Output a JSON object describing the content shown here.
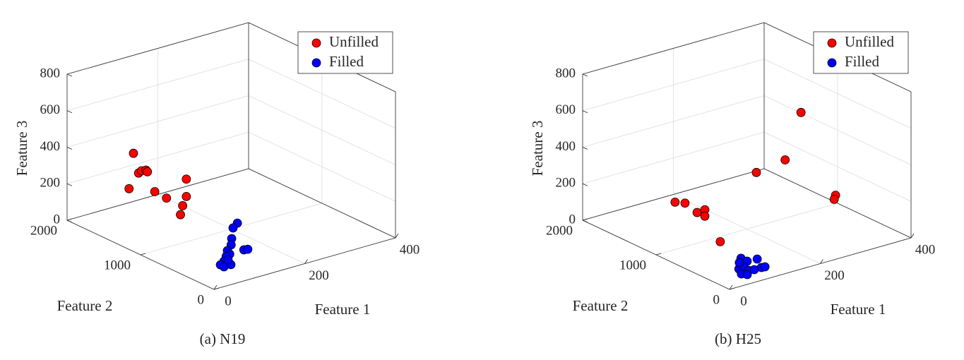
{
  "chart_data": [
    {
      "type": "scatter3d",
      "caption": "(a) N19",
      "xlabel": "Feature 1",
      "ylabel": "Feature 2",
      "zlabel": "Feature 3",
      "xlim": [
        0,
        400
      ],
      "ylim": [
        0,
        2000
      ],
      "zlim": [
        0,
        800
      ],
      "xticks": [
        0,
        200,
        400
      ],
      "yticks": [
        0,
        1000,
        2000
      ],
      "zticks": [
        0,
        200,
        400,
        600,
        800
      ],
      "grid": true,
      "legend": "northeast",
      "series": [
        {
          "name": "Unfilled",
          "color": "#ff0000",
          "x": [
            20,
            20,
            20,
            20,
            20,
            20,
            20,
            20,
            20,
            20,
            20,
            20
          ],
          "y": [
            1220,
            1150,
            1110,
            1050,
            1030,
            1280,
            930,
            500,
            770,
            500,
            550,
            580
          ],
          "z": [
            500,
            405,
            425,
            440,
            435,
            295,
            345,
            495,
            340,
            400,
            340,
            285
          ]
        },
        {
          "name": "Filled",
          "color": "#0000ff",
          "x": [
            215,
            195,
            162,
            143,
            121,
            114,
            103,
            85,
            70,
            69,
            85,
            146,
            153,
            95
          ],
          "y": [
            1010,
            945,
            760,
            650,
            565,
            490,
            470,
            390,
            345,
            290,
            295,
            495,
            485,
            395
          ],
          "z": [
            20,
            20,
            20,
            20,
            20,
            20,
            20,
            20,
            20,
            20,
            20,
            20,
            20,
            20
          ]
        }
      ]
    },
    {
      "type": "scatter3d",
      "caption": "(b) H25",
      "xlabel": "Feature 1",
      "ylabel": "Feature 2",
      "zlabel": "Feature 3",
      "xlim": [
        0,
        400
      ],
      "ylim": [
        0,
        2000
      ],
      "zlim": [
        0,
        800
      ],
      "xticks": [
        0,
        200,
        400
      ],
      "yticks": [
        0,
        1000,
        2000
      ],
      "zticks": [
        0,
        200,
        400,
        600,
        800
      ],
      "grid": true,
      "legend": "northeast",
      "series": [
        {
          "name": "Unfilled",
          "color": "#ff0000",
          "x": [
            287,
            252,
            221,
            266,
            263,
            20,
            20,
            20,
            20,
            20,
            20
          ],
          "y": [
            800,
            800,
            1000,
            200,
            200,
            865,
            730,
            565,
            460,
            460,
            250
          ],
          "z": [
            615,
            380,
            295,
            290,
            270,
            300,
            320,
            300,
            335,
            300,
            200
          ]
        },
        {
          "name": "Filled",
          "color": "#0000ff",
          "x": [
            96,
            96,
            116,
            97,
            104,
            62,
            75,
            71,
            51,
            57,
            81,
            81
          ],
          "y": [
            437,
            353,
            340,
            166,
            160,
            256,
            269,
            180,
            153,
            111,
            164,
            367
          ],
          "z": [
            20,
            20,
            20,
            20,
            20,
            20,
            20,
            20,
            20,
            20,
            20,
            20
          ]
        }
      ]
    }
  ]
}
